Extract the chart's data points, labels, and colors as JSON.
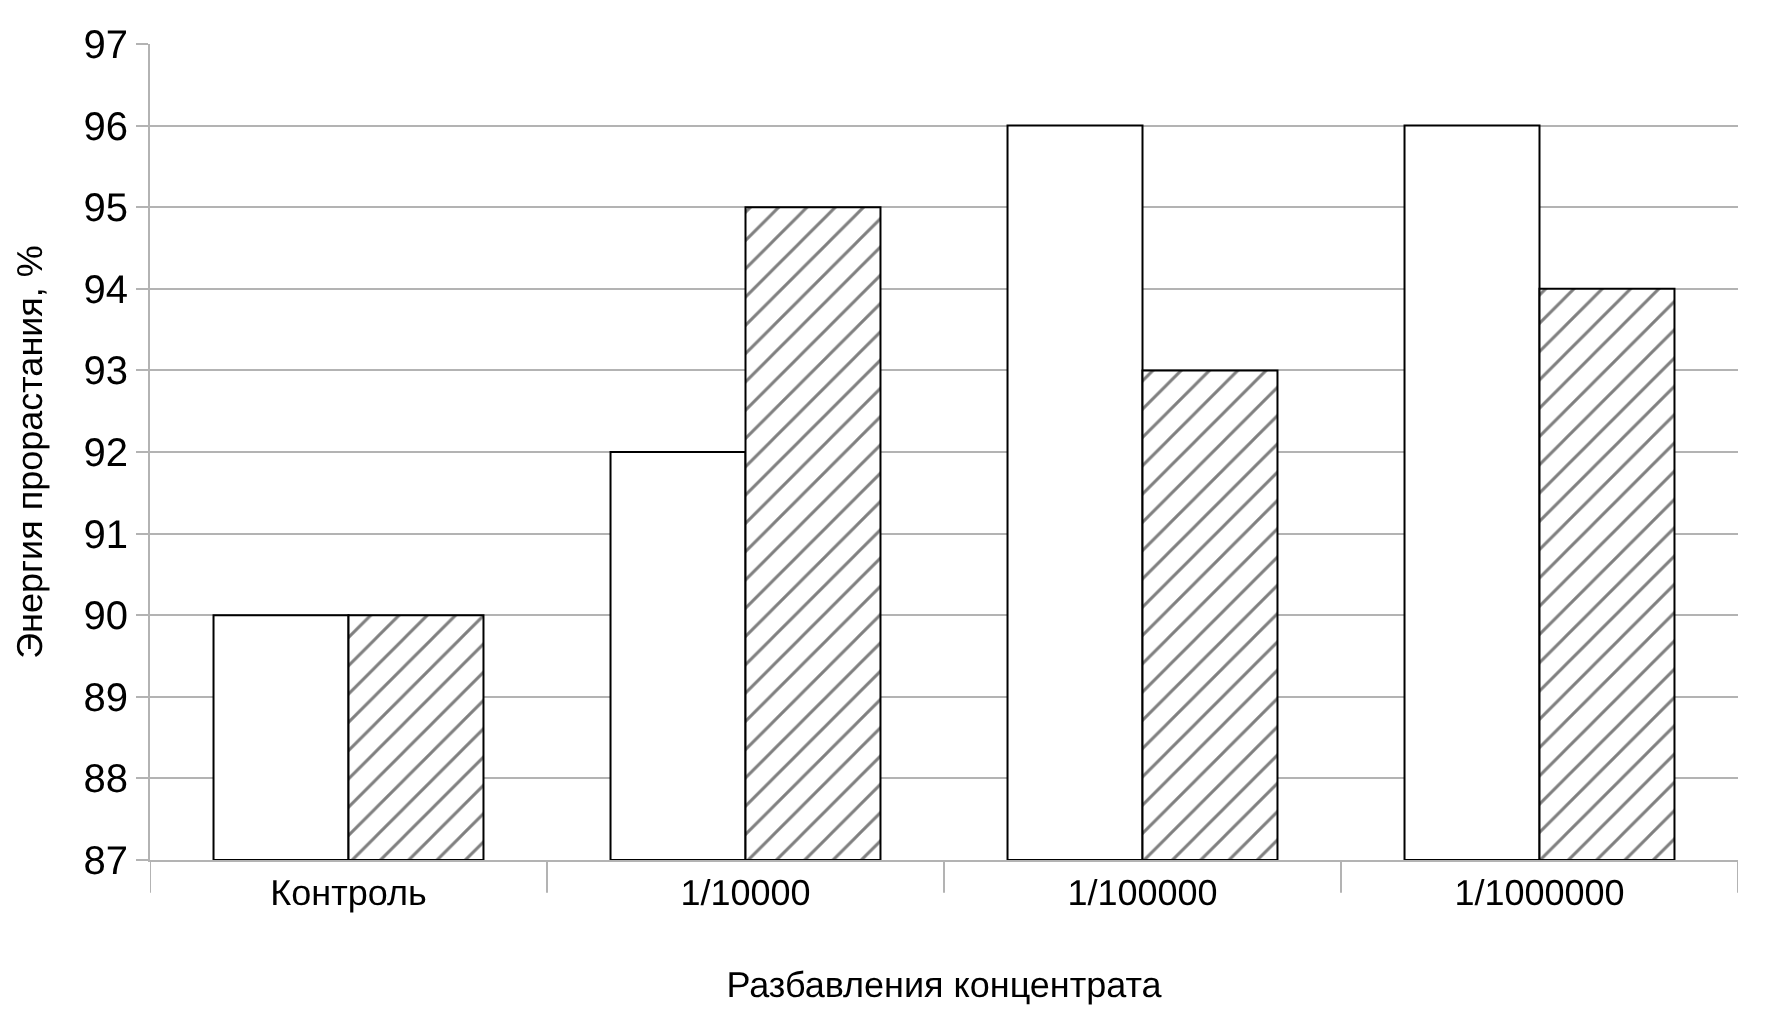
{
  "chart_data": {
    "type": "bar",
    "xlabel": "Разбавления концентрата",
    "ylabel": "Энергия прорастания, %",
    "categories": [
      "Контроль",
      "1/10000",
      "1/100000",
      "1/1000000"
    ],
    "series": [
      {
        "color": "#ffffff",
        "values": [
          90,
          92,
          96,
          96
        ]
      },
      {
        "color": "#000000",
        "values": [
          90,
          95,
          93,
          94
        ]
      }
    ],
    "ylim": [
      87,
      97
    ],
    "yticks": [
      87,
      88,
      89,
      90,
      91,
      92,
      93,
      94,
      95,
      96,
      97
    ],
    "grid": "y"
  }
}
